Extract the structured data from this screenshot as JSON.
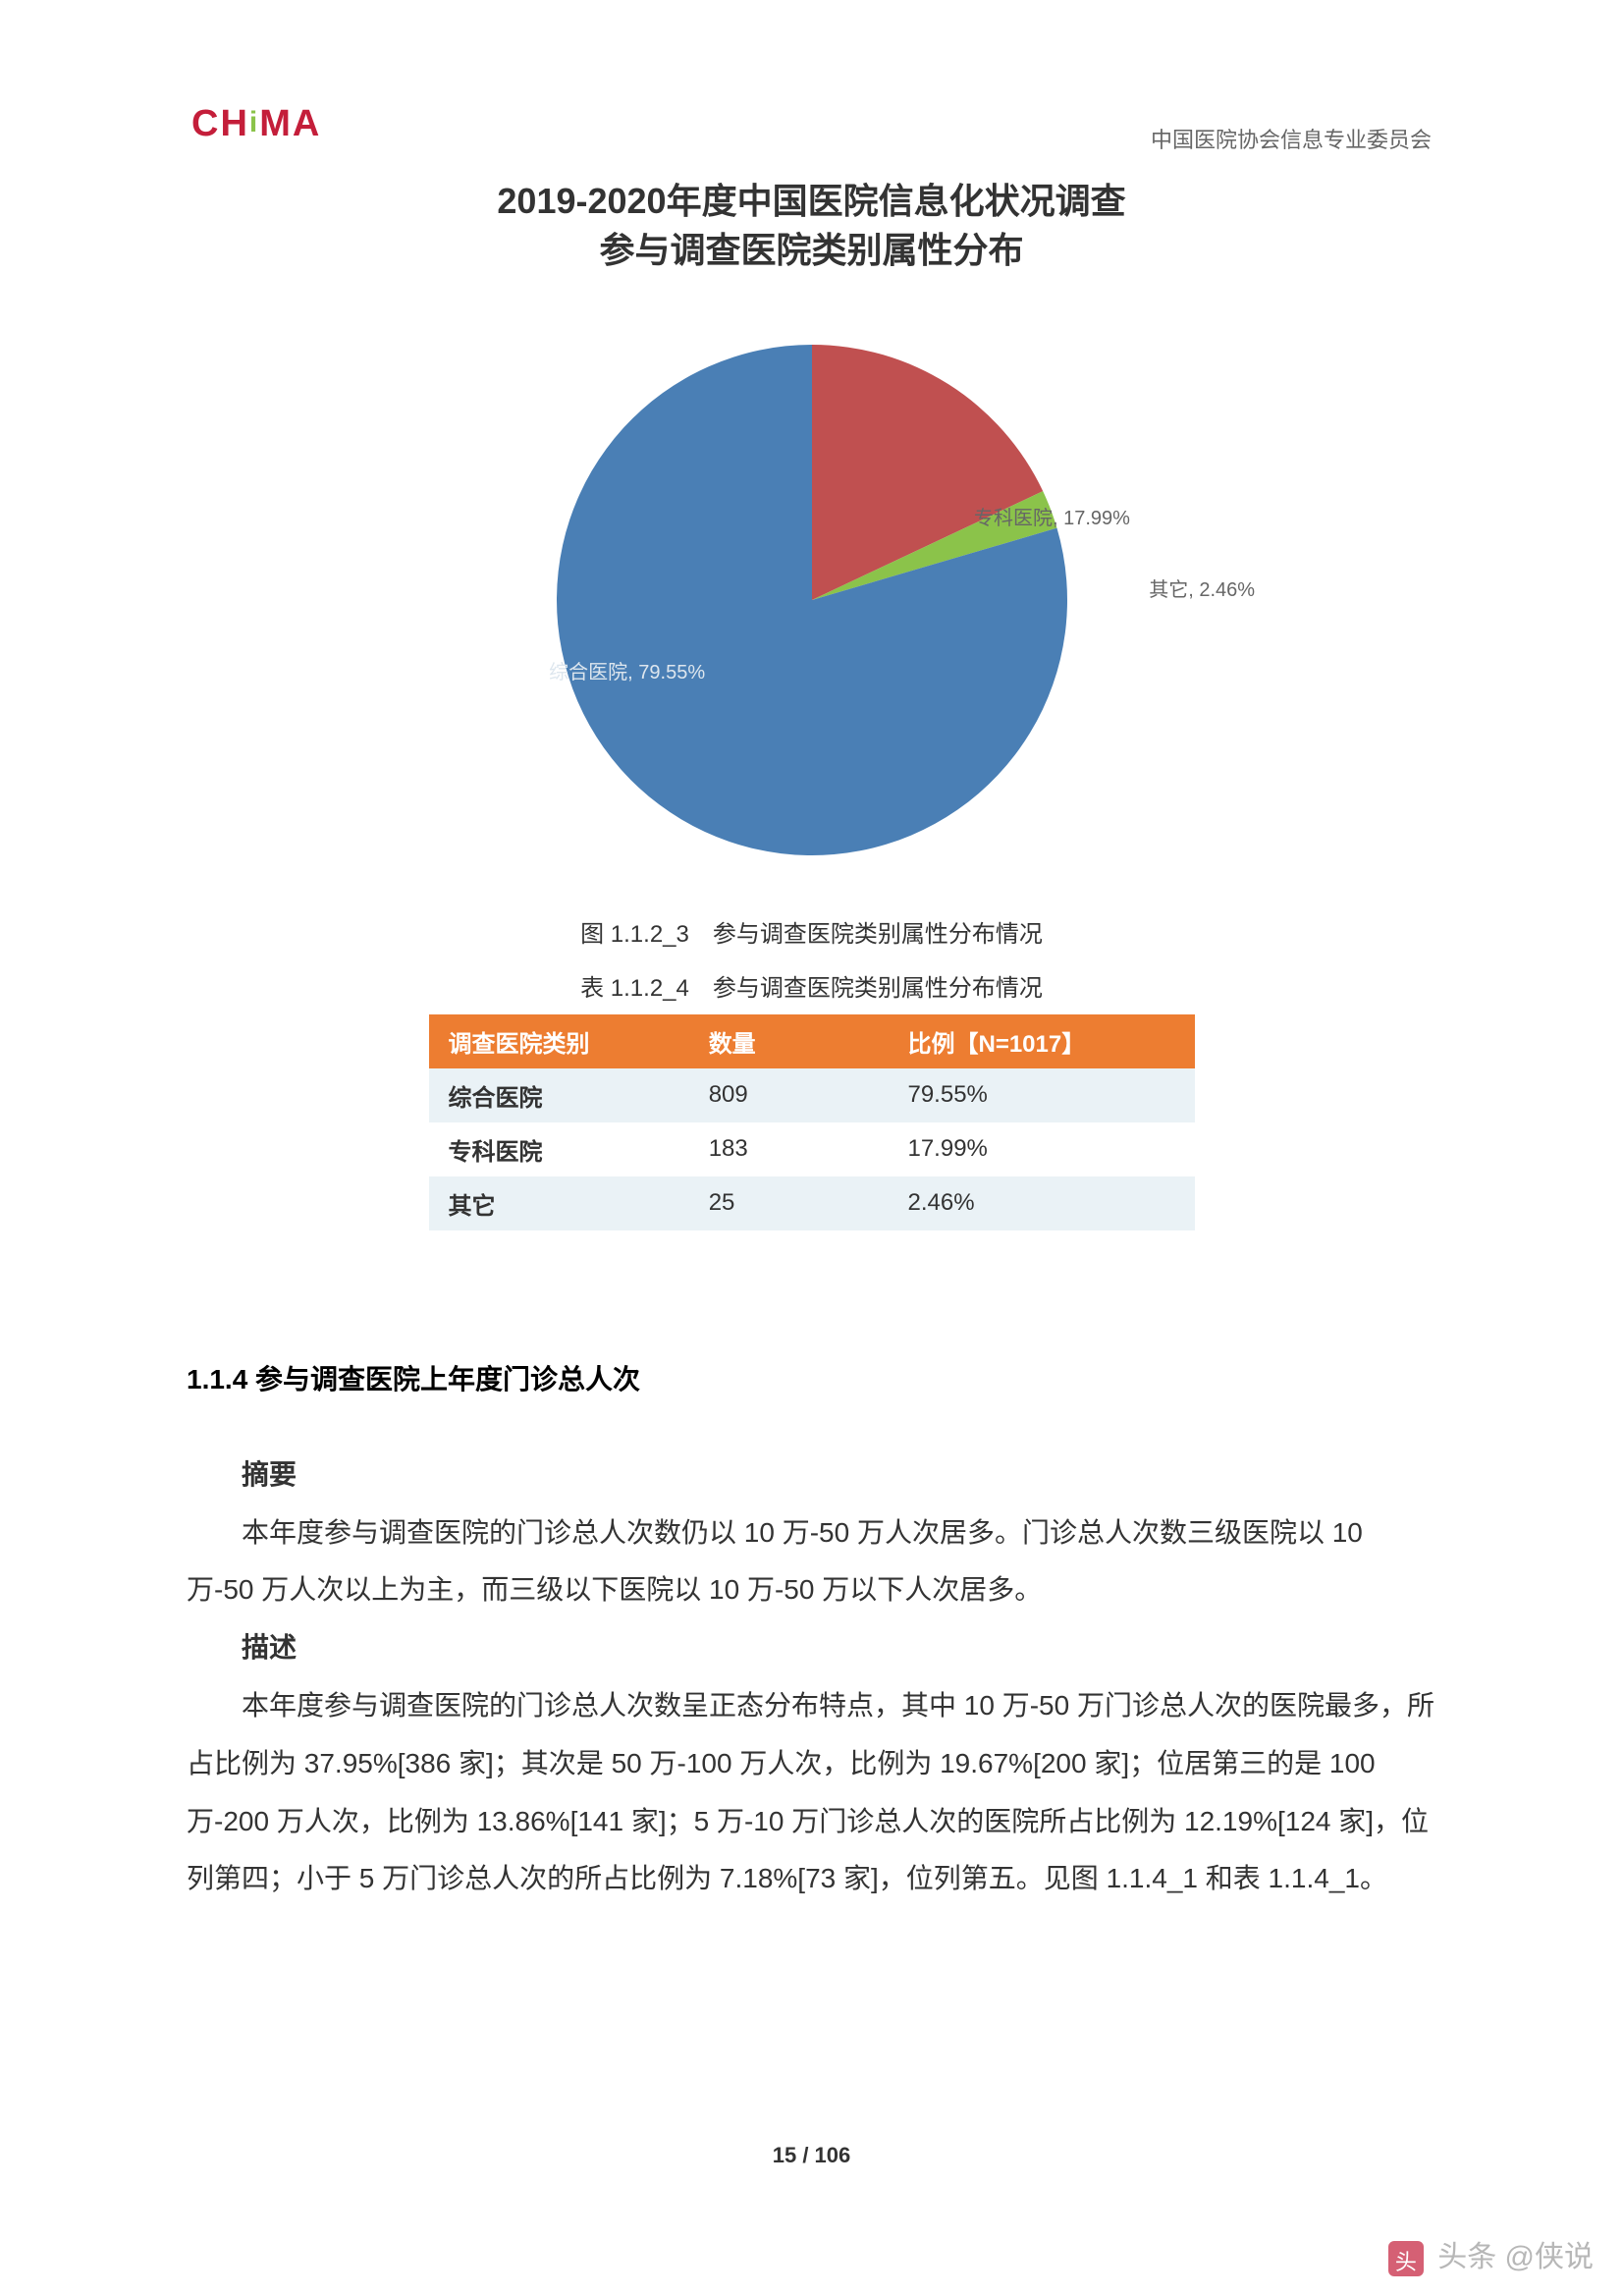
{
  "logo": {
    "text_left": "CH",
    "text_mid": "i",
    "text_right": "MA"
  },
  "header_right": "中国医院协会信息专业委员会",
  "chart": {
    "title_line1": "2019-2020年度中国医院信息化状况调查",
    "title_line2": "参与调查医院类别属性分布",
    "type": "pie",
    "background_color": "#ffffff",
    "title_fontsize": 36,
    "title_color": "#333333",
    "radius": 260,
    "slices": [
      {
        "label": "综合医院",
        "value": 79.55,
        "color": "#4a7fb5",
        "display": "综合医院, 79.55%"
      },
      {
        "label": "专科医院",
        "value": 17.99,
        "color": "#c05050",
        "display": "专科医院, 17.99%"
      },
      {
        "label": "其它",
        "value": 2.46,
        "color": "#8bc34a",
        "display": "其它, 2.46%"
      }
    ],
    "label_fontsize": 20,
    "label_color": "#666666"
  },
  "figure_caption": "图 1.1.2_3　参与调查医院类别属性分布情况",
  "table_caption": "表 1.1.2_4　参与调查医院类别属性分布情况",
  "table": {
    "header_bg": "#ed7d31",
    "header_color": "#ffffff",
    "row_even_bg": "#eaf2f6",
    "row_odd_bg": "#ffffff",
    "columns": [
      "调查医院类别",
      "数量",
      "比例【N=1017】"
    ],
    "col_widths": [
      "34%",
      "26%",
      "40%"
    ],
    "rows": [
      [
        "综合医院",
        "809",
        "79.55%"
      ],
      [
        "专科医院",
        "183",
        "17.99%"
      ],
      [
        "其它",
        "25",
        "2.46%"
      ]
    ]
  },
  "section": {
    "heading": "1.1.4  参与调查医院上年度门诊总人次",
    "abstract_label": "摘要",
    "abstract_body": "本年度参与调查医院的门诊总人次数仍以 10 万-50 万人次居多。门诊总人次数三级医院以 10 万-50 万人次以上为主，而三级以下医院以 10 万-50 万以下人次居多。",
    "desc_label": "描述",
    "desc_body": "本年度参与调查医院的门诊总人次数呈正态分布特点，其中 10 万-50 万门诊总人次的医院最多，所占比例为 37.95%[386 家]；其次是 50 万-100 万人次，比例为 19.67%[200 家]；位居第三的是 100 万-200 万人次，比例为 13.86%[141 家]；5 万-10 万门诊总人次的医院所占比例为 12.19%[124 家]，位列第四；小于 5 万门诊总人次的所占比例为 7.18%[73 家]，位列第五。见图 1.1.4_1 和表 1.1.4_1。"
  },
  "page_number": "15  /  106",
  "watermark": "头条 @侠说"
}
